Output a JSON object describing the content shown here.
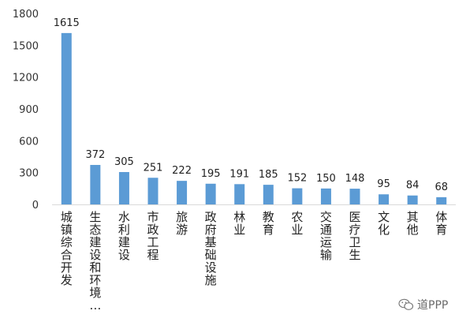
{
  "chart_data": {
    "type": "bar",
    "categories": [
      "城镇综合开发",
      "生态建设和环境…",
      "水利建设",
      "市政工程",
      "旅游",
      "政府基础设施",
      "林业",
      "教育",
      "农业",
      "交通运输",
      "医疗卫生",
      "文化",
      "其他",
      "体育"
    ],
    "values": [
      1615,
      372,
      305,
      251,
      222,
      195,
      191,
      185,
      152,
      150,
      148,
      95,
      84,
      68
    ],
    "ylim": [
      0,
      1800
    ],
    "yticks": [
      0,
      300,
      600,
      900,
      1200,
      1500,
      1800
    ],
    "grid": false,
    "legend": "none",
    "bar_color": "#5b9bd5"
  },
  "watermark": {
    "text": "道PPP",
    "icon": "wechat-icon"
  }
}
